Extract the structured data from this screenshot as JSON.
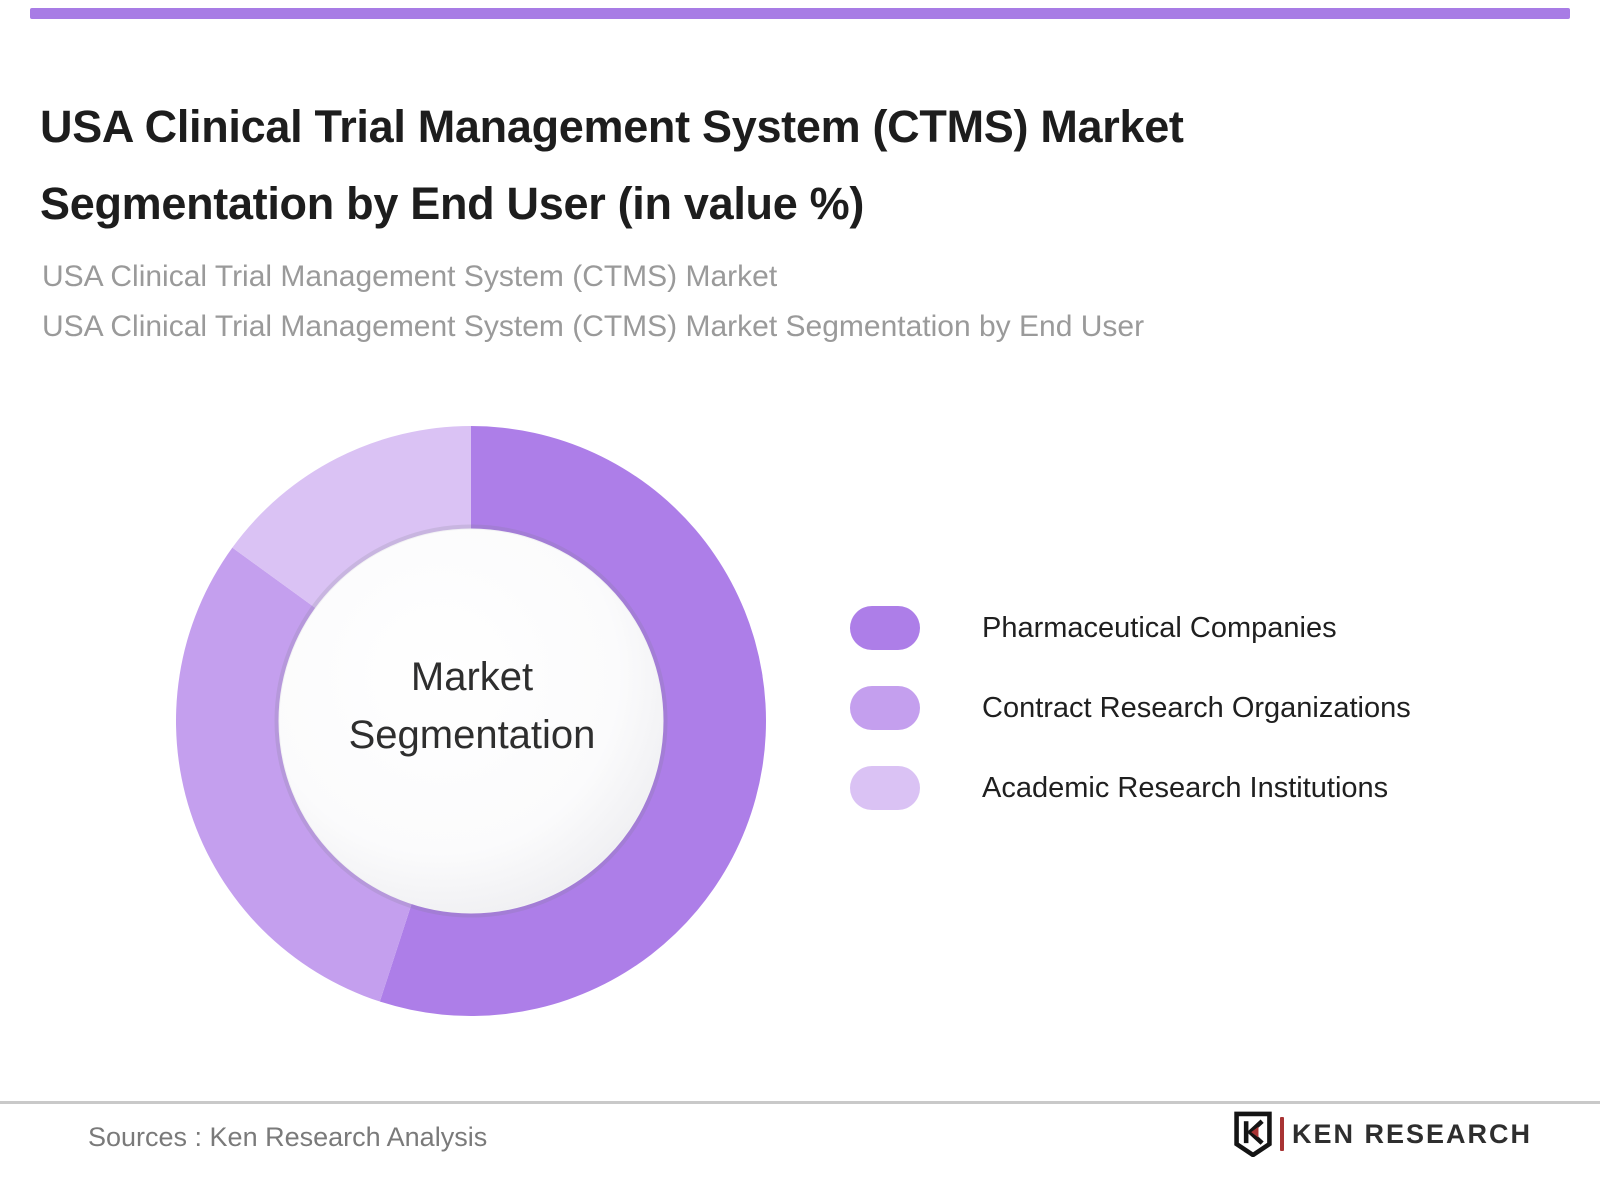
{
  "page": {
    "accent_color": "#a87ce5"
  },
  "header": {
    "title": "USA Clinical Trial Management System (CTMS) Market Segmentation by End User (in value %)",
    "subtitle_line1": "USA Clinical Trial Management System (CTMS) Market",
    "subtitle_line2": "USA Clinical Trial Management System (CTMS) Market Segmentation by End User"
  },
  "chart_data": {
    "type": "pie",
    "variant": "donut",
    "title": "USA Clinical Trial Management System (CTMS) Market Segmentation by End User (in value %)",
    "center_label": "Market Segmentation",
    "categories": [
      "Pharmaceutical Companies",
      "Contract Research Organizations",
      "Academic Research Institutions"
    ],
    "values": [
      55,
      30,
      15
    ],
    "unit": "% (estimated from arc angles; no numeric labels shown)",
    "colors": [
      "#ad7ee8",
      "#c49fee",
      "#dac2f4"
    ],
    "start_angle_deg": 0,
    "direction": "clockwise",
    "legend_position": "right",
    "data_labels": false,
    "hole_color": "#ffffff"
  },
  "legend": {
    "items": [
      {
        "label": "Pharmaceutical Companies",
        "color": "#ad7ee8"
      },
      {
        "label": "Contract Research Organizations",
        "color": "#c49fee"
      },
      {
        "label": "Academic Research Institutions",
        "color": "#dac2f4"
      }
    ]
  },
  "footer": {
    "source_text": "Sources : Ken Research Analysis",
    "logo_text": "KEN RESEARCH",
    "logo_icon": "ken-research-shield-k",
    "logo_accent_color": "#a83434",
    "logo_text_color": "#2e2e2e"
  }
}
